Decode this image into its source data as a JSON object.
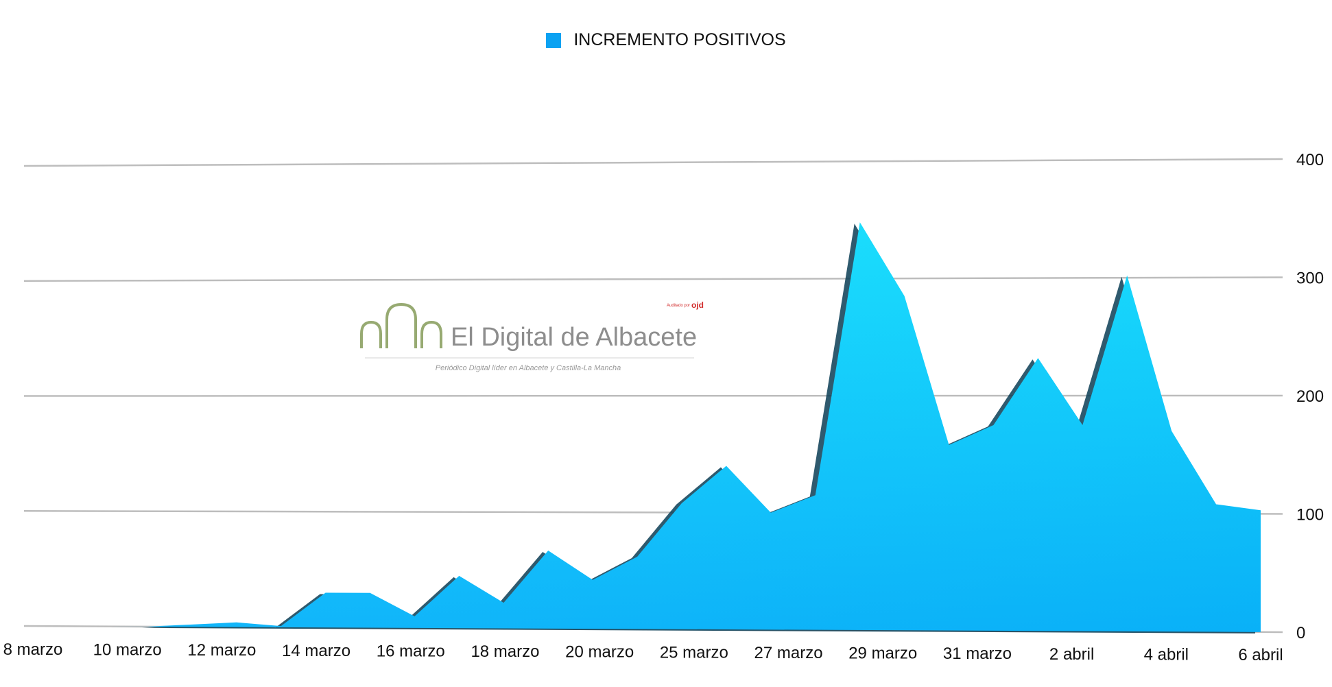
{
  "chart_data": {
    "type": "area",
    "legend": {
      "label": "INCREMENTO POSITIVOS",
      "color": "#0ba2f2",
      "placement": "top-center"
    },
    "y_axis": {
      "position": "right",
      "ticks": [
        "0",
        "100",
        "200",
        "300",
        "400"
      ],
      "ylim": [
        0,
        400
      ]
    },
    "x_axis": {
      "ticks": [
        "8 marzo",
        "10 marzo",
        "12 marzo",
        "14 marzo",
        "16 marzo",
        "18 marzo",
        "20 marzo",
        "25 marzo",
        "27 marzo",
        "29 marzo",
        "31 marzo",
        "2 abril",
        "4 abril",
        "6 abril"
      ]
    },
    "series": [
      {
        "name": "INCREMENTO POSITIVOS",
        "values": [
          0,
          0,
          2,
          4,
          1,
          30,
          30,
          10,
          45,
          22,
          67,
          42,
          62,
          108,
          140,
          100,
          115,
          348,
          285,
          158,
          175,
          232,
          175,
          302,
          170,
          108,
          103
        ]
      }
    ],
    "grid": true,
    "watermark": {
      "brand": "El Digital de Albacete",
      "tagline": "Periódico Digital líder en Albacete y Castilla-La Mancha",
      "audit_label": "Auditado por",
      "audit_mark": "ojd"
    },
    "colors": {
      "area_top": "#10defe",
      "area_bottom": "#0ab6fc",
      "gridline": "#bdbdbd",
      "shadow": "#0a3d55",
      "logo_green": "#97aa72",
      "logo_text": "#8d8d8d"
    }
  }
}
